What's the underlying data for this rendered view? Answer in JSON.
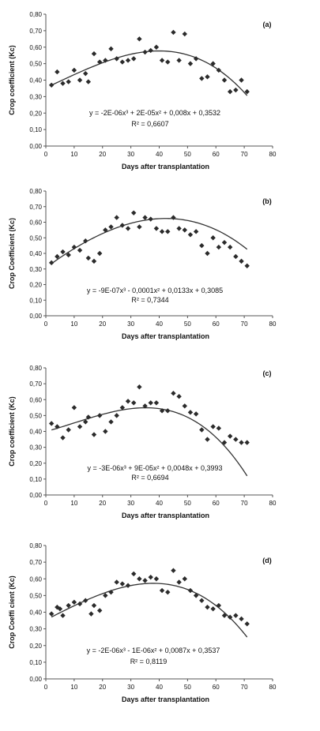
{
  "chart_data": [
    {
      "type": "scatter",
      "panel_label": "(a)",
      "xlabel": "Days after transplantation",
      "ylabel": "Crop coefficient (Kc)",
      "xlim": [
        0,
        80
      ],
      "ylim": [
        0,
        0.8
      ],
      "xticks": [
        0,
        10,
        20,
        30,
        40,
        50,
        60,
        70,
        80
      ],
      "yticks": [
        0,
        0.1,
        0.2,
        0.3,
        0.4,
        0.5,
        0.6,
        0.7,
        0.8
      ],
      "xtick_labels": [
        "0",
        "10",
        "20",
        "30",
        "40",
        "50",
        "60",
        "70",
        "80"
      ],
      "ytick_labels": [
        "0,00",
        "0,10",
        "0,20",
        "0,30",
        "0,40",
        "0,50",
        "0,60",
        "0,70",
        "0,80"
      ],
      "equation": "y = -2E-06x³ + 2E-05x² + 0,008x + 0,3532",
      "r2": "R² = 0,6607",
      "fit": [
        -2e-06,
        2e-05,
        0.008,
        0.3532
      ],
      "x": [
        2,
        4,
        6,
        8,
        10,
        12,
        14,
        15,
        17,
        19,
        21,
        23,
        25,
        27,
        29,
        31,
        33,
        35,
        37,
        39,
        41,
        43,
        45,
        47,
        49,
        51,
        53,
        55,
        57,
        59,
        61,
        63,
        65,
        67,
        69,
        71
      ],
      "y": [
        0.37,
        0.45,
        0.38,
        0.39,
        0.46,
        0.4,
        0.44,
        0.39,
        0.56,
        0.51,
        0.52,
        0.59,
        0.53,
        0.51,
        0.52,
        0.53,
        0.65,
        0.57,
        0.58,
        0.6,
        0.52,
        0.51,
        0.69,
        0.52,
        0.68,
        0.5,
        0.53,
        0.41,
        0.42,
        0.5,
        0.46,
        0.4,
        0.33,
        0.34,
        0.4,
        0.33
      ]
    },
    {
      "type": "scatter",
      "panel_label": "(b)",
      "xlabel": "Days after transplantation",
      "ylabel": "Crop Coefficient (Kc)",
      "xlim": [
        0,
        80
      ],
      "ylim": [
        0,
        0.8
      ],
      "xticks": [
        0,
        10,
        20,
        30,
        40,
        50,
        60,
        70,
        80
      ],
      "yticks": [
        0,
        0.1,
        0.2,
        0.3,
        0.4,
        0.5,
        0.6,
        0.7,
        0.8
      ],
      "xtick_labels": [
        "0",
        "10",
        "20",
        "30",
        "40",
        "50",
        "60",
        "70",
        "80"
      ],
      "ytick_labels": [
        "0,00",
        "0,10",
        "0,20",
        "0,30",
        "0,40",
        "0,50",
        "0,60",
        "0,70",
        "0,80"
      ],
      "equation": "y = -9E-07x³ - 0,0001x² + 0,0133x + 0,3085",
      "r2": "R² = 0,7344",
      "fit": [
        -9e-07,
        -0.0001,
        0.0133,
        0.3085
      ],
      "x": [
        2,
        4,
        6,
        8,
        10,
        12,
        14,
        15,
        17,
        19,
        21,
        23,
        25,
        27,
        29,
        31,
        33,
        35,
        37,
        39,
        41,
        43,
        45,
        47,
        49,
        51,
        53,
        55,
        57,
        59,
        61,
        63,
        65,
        67,
        69,
        71
      ],
      "y": [
        0.34,
        0.38,
        0.41,
        0.39,
        0.44,
        0.42,
        0.48,
        0.37,
        0.35,
        0.4,
        0.55,
        0.57,
        0.63,
        0.58,
        0.56,
        0.66,
        0.57,
        0.63,
        0.62,
        0.56,
        0.54,
        0.54,
        0.63,
        0.56,
        0.55,
        0.52,
        0.54,
        0.45,
        0.4,
        0.5,
        0.44,
        0.47,
        0.44,
        0.38,
        0.35,
        0.32
      ]
    },
    {
      "type": "scatter",
      "panel_label": "(c)",
      "xlabel": "Days after transplantation",
      "ylabel": "Crop coefficient (Kc)",
      "xlim": [
        0,
        80
      ],
      "ylim": [
        0,
        0.8
      ],
      "xticks": [
        0,
        10,
        20,
        30,
        40,
        50,
        60,
        70,
        80
      ],
      "yticks": [
        0,
        0.1,
        0.2,
        0.3,
        0.4,
        0.5,
        0.6,
        0.7,
        0.8
      ],
      "xtick_labels": [
        "0",
        "10",
        "20",
        "30",
        "40",
        "50",
        "60",
        "70",
        "80"
      ],
      "ytick_labels": [
        "0,00",
        "0,10",
        "0,20",
        "0,30",
        "0,40",
        "0,50",
        "0,60",
        "0,70",
        "0,80"
      ],
      "equation": "y = -3E-06x³ + 9E-05x² + 0,0048x + 0,3993",
      "r2": "R² = 0,6694",
      "fit": [
        -3e-06,
        9e-05,
        0.0048,
        0.3993
      ],
      "x": [
        2,
        4,
        6,
        8,
        10,
        12,
        14,
        15,
        17,
        19,
        21,
        23,
        25,
        27,
        29,
        31,
        33,
        35,
        37,
        39,
        41,
        43,
        45,
        47,
        49,
        51,
        53,
        55,
        57,
        59,
        61,
        63,
        65,
        67,
        69,
        71
      ],
      "y": [
        0.45,
        0.43,
        0.36,
        0.41,
        0.55,
        0.43,
        0.46,
        0.49,
        0.38,
        0.5,
        0.4,
        0.46,
        0.5,
        0.55,
        0.59,
        0.58,
        0.68,
        0.56,
        0.58,
        0.58,
        0.53,
        0.53,
        0.64,
        0.62,
        0.56,
        0.52,
        0.51,
        0.41,
        0.35,
        0.43,
        0.42,
        0.33,
        0.37,
        0.35,
        0.33,
        0.33
      ]
    },
    {
      "type": "scatter",
      "panel_label": "(d)",
      "xlabel": "Days after transplantation",
      "ylabel": "Crop Coeffi cient (Kc)",
      "xlim": [
        0,
        80
      ],
      "ylim": [
        0,
        0.8
      ],
      "xticks": [
        0,
        10,
        20,
        30,
        40,
        50,
        60,
        70,
        80
      ],
      "yticks": [
        0,
        0.1,
        0.2,
        0.3,
        0.4,
        0.5,
        0.6,
        0.7,
        0.8
      ],
      "xtick_labels": [
        "0",
        "10",
        "20",
        "30",
        "40",
        "50",
        "60",
        "70",
        "80"
      ],
      "ytick_labels": [
        "0,00",
        "0,10",
        "0,20",
        "0,30",
        "0,40",
        "0,50",
        "0,60",
        "0,70",
        "0,80"
      ],
      "equation": "y = -2E-06x³ - 1E-06x² + 0,0087x + 0,3537",
      "r2": "R² = 0,8119",
      "fit": [
        -2e-06,
        -1e-06,
        0.0087,
        0.3537
      ],
      "x": [
        2,
        4,
        5,
        6,
        8,
        10,
        12,
        14,
        16,
        17,
        19,
        21,
        23,
        25,
        27,
        29,
        31,
        33,
        35,
        37,
        39,
        41,
        43,
        45,
        47,
        49,
        51,
        53,
        55,
        57,
        59,
        61,
        63,
        65,
        67,
        69,
        71
      ],
      "y": [
        0.39,
        0.43,
        0.42,
        0.38,
        0.44,
        0.46,
        0.45,
        0.47,
        0.39,
        0.44,
        0.41,
        0.5,
        0.52,
        0.58,
        0.57,
        0.56,
        0.63,
        0.6,
        0.59,
        0.61,
        0.6,
        0.53,
        0.52,
        0.65,
        0.58,
        0.6,
        0.53,
        0.5,
        0.47,
        0.43,
        0.42,
        0.44,
        0.38,
        0.37,
        0.38,
        0.36,
        0.33
      ]
    }
  ]
}
